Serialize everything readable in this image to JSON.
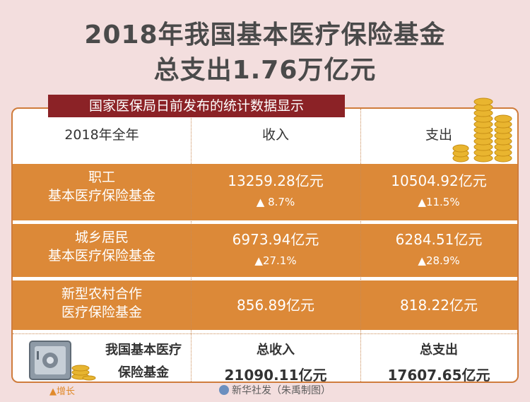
{
  "title_line1": "2018年我国基本医疗保险基金",
  "title_line2": "总支出1.76万亿元",
  "subtitle": "国家医保局日前发布的统计数据显示",
  "header": {
    "period": "2018年全年",
    "income": "收入",
    "expense": "支出"
  },
  "rows": [
    {
      "name_line1": "职工",
      "name_line2": "基本医疗保险基金",
      "income": "13259.28亿元",
      "income_growth": "▲ 8.7%",
      "expense": "10504.92亿元",
      "expense_growth": "▲11.5%"
    },
    {
      "name_line1": "城乡居民",
      "name_line2": "基本医疗保险基金",
      "income": "6973.94亿元",
      "income_growth": "▲27.1%",
      "expense": "6284.51亿元",
      "expense_growth": "▲28.9%"
    },
    {
      "name_line1": "新型农村合作",
      "name_line2": "医疗保险基金",
      "income": "856.89亿元",
      "expense": "818.22亿元"
    }
  ],
  "total": {
    "name_line1": "我国基本医疗",
    "name_line2": "保险基金",
    "income_label": "总收入",
    "income": "21090.11亿元",
    "expense_label": "总支出",
    "expense": "17607.65亿元"
  },
  "legend": "▲增长",
  "credit": "新华社发（朱禹制图）",
  "colors": {
    "orange": "#dc8938",
    "title_bar": "#8b2226",
    "background": "#f3dede"
  }
}
